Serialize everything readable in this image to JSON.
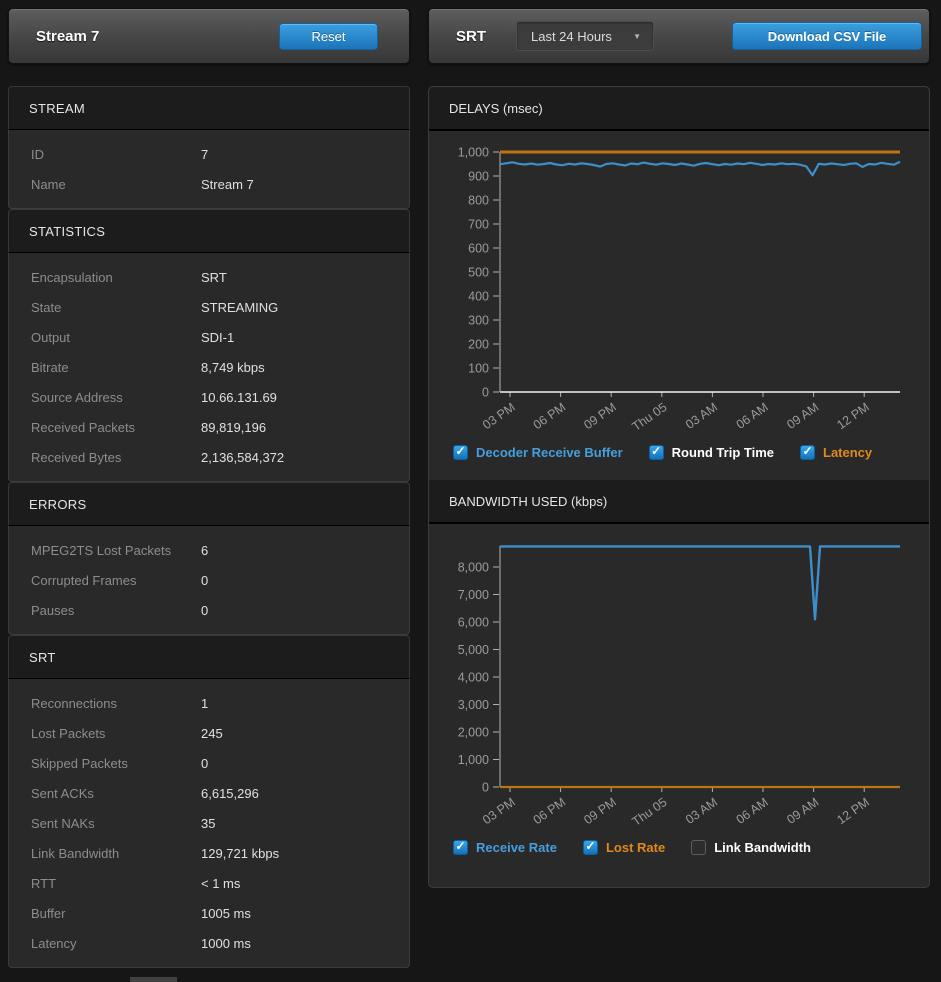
{
  "left_header": {
    "title": "Stream 7",
    "reset_label": "Reset"
  },
  "right_header": {
    "title": "SRT",
    "time_range": {
      "value": "Last 24 Hours"
    },
    "download_label": "Download CSV File"
  },
  "colors": {
    "accent_blue": "#2f96d8",
    "series_blue": "#3e8ec9",
    "series_orange": "#bd7514",
    "legend_blue": "#459fdd",
    "legend_orange": "#e08a1a",
    "panel": "#292929",
    "header_strip": "#1c1c1c"
  },
  "sections": [
    {
      "title": "STREAM",
      "rows": [
        {
          "label": "ID",
          "value": "7"
        },
        {
          "label": "Name",
          "value": "Stream 7"
        }
      ]
    },
    {
      "title": "STATISTICS",
      "rows": [
        {
          "label": "Encapsulation",
          "value": "SRT"
        },
        {
          "label": "State",
          "value": "STREAMING"
        },
        {
          "label": "Output",
          "value": "SDI-1"
        },
        {
          "label": "Bitrate",
          "value": "8,749 kbps"
        },
        {
          "label": "Source Address",
          "value": "10.66.131.69"
        },
        {
          "label": "Received Packets",
          "value": "89,819,196"
        },
        {
          "label": "Received Bytes",
          "value": "2,136,584,372"
        }
      ]
    },
    {
      "title": "ERRORS",
      "rows": [
        {
          "label": "MPEG2TS Lost Packets",
          "value": "6"
        },
        {
          "label": "Corrupted Frames",
          "value": "0"
        },
        {
          "label": "Pauses",
          "value": "0"
        }
      ]
    },
    {
      "title": "SRT",
      "rows": [
        {
          "label": "Reconnections",
          "value": "1"
        },
        {
          "label": "Lost Packets",
          "value": "245"
        },
        {
          "label": "Skipped Packets",
          "value": "0"
        },
        {
          "label": "Sent ACKs",
          "value": "6,615,296"
        },
        {
          "label": "Sent NAKs",
          "value": "35"
        },
        {
          "label": "Link Bandwidth",
          "value": "129,721 kbps"
        },
        {
          "label": "RTT",
          "value": "< 1 ms"
        },
        {
          "label": "Buffer",
          "value": "1005 ms"
        },
        {
          "label": "Latency",
          "value": "1000 ms"
        }
      ]
    }
  ],
  "chart_data": [
    {
      "type": "line",
      "title": "DELAYS (msec)",
      "xlabel": "",
      "ylabel": "msec",
      "ylim": [
        0,
        1000
      ],
      "y_ticks": [
        0,
        100,
        200,
        300,
        400,
        500,
        600,
        700,
        800,
        900,
        1000
      ],
      "x_tick_labels": [
        "03 PM",
        "06 PM",
        "09 PM",
        "Thu 05",
        "03 AM",
        "06 AM",
        "09 AM",
        "12 PM"
      ],
      "x_tick_pos": [
        0.025,
        0.1515,
        0.278,
        0.4045,
        0.531,
        0.6575,
        0.784,
        0.9105
      ],
      "grid": false,
      "legend_position": "bottom",
      "series": [
        {
          "name": "Decoder Receive Buffer",
          "checked": true,
          "color": "#3e8ec9",
          "label_color": "#459fdd",
          "values": [
            949,
            953,
            957,
            951,
            948,
            952,
            947,
            950,
            954,
            948,
            945,
            951,
            948,
            953,
            950,
            946,
            939,
            950,
            953,
            948,
            944,
            952,
            949,
            956,
            951,
            947,
            953,
            950,
            946,
            952,
            948,
            943,
            951,
            954,
            949,
            945,
            950,
            947,
            952,
            949,
            955,
            951,
            946,
            950,
            948,
            953,
            949,
            951,
            947,
            940,
            903,
            951,
            948,
            952,
            949,
            946,
            951,
            953,
            938,
            950,
            948,
            955,
            951,
            947,
            959
          ]
        },
        {
          "name": "Round Trip Time",
          "checked": true,
          "color": "#e8e8e8",
          "label_color": "#ffffff",
          "x": [
            0,
            1
          ],
          "values": [
            0,
            0
          ]
        },
        {
          "name": "Latency",
          "checked": true,
          "color": "#bd7514",
          "label_color": "#e08a1a",
          "x": [
            0,
            1
          ],
          "values": [
            1000,
            1000
          ]
        }
      ]
    },
    {
      "type": "line",
      "title": "BANDWIDTH USED (kbps)",
      "xlabel": "",
      "ylabel": "kbps",
      "ylim": [
        0,
        8000
      ],
      "y_ticks": [
        0,
        1000,
        2000,
        3000,
        4000,
        5000,
        6000,
        7000,
        8000
      ],
      "x_tick_labels": [
        "03 PM",
        "06 PM",
        "09 PM",
        "Thu 05",
        "03 AM",
        "06 AM",
        "09 AM",
        "12 PM"
      ],
      "x_tick_pos": [
        0.025,
        0.1515,
        0.278,
        0.4045,
        0.531,
        0.6575,
        0.784,
        0.9105
      ],
      "grid": false,
      "legend_position": "bottom",
      "series": [
        {
          "name": "Receive Rate",
          "checked": true,
          "color": "#3e8ec9",
          "label_color": "#459fdd",
          "x": [
            0,
            0.775,
            0.7875,
            0.8,
            1
          ],
          "values": [
            8749,
            8749,
            6100,
            8749,
            8749
          ]
        },
        {
          "name": "Lost Rate",
          "checked": true,
          "color": "#bd7514",
          "label_color": "#e08a1a",
          "x": [
            0,
            1
          ],
          "values": [
            0,
            0
          ]
        },
        {
          "name": "Link Bandwidth",
          "checked": false,
          "color": "#9a9a9a",
          "label_color": "#ffffff",
          "values": []
        }
      ]
    }
  ]
}
